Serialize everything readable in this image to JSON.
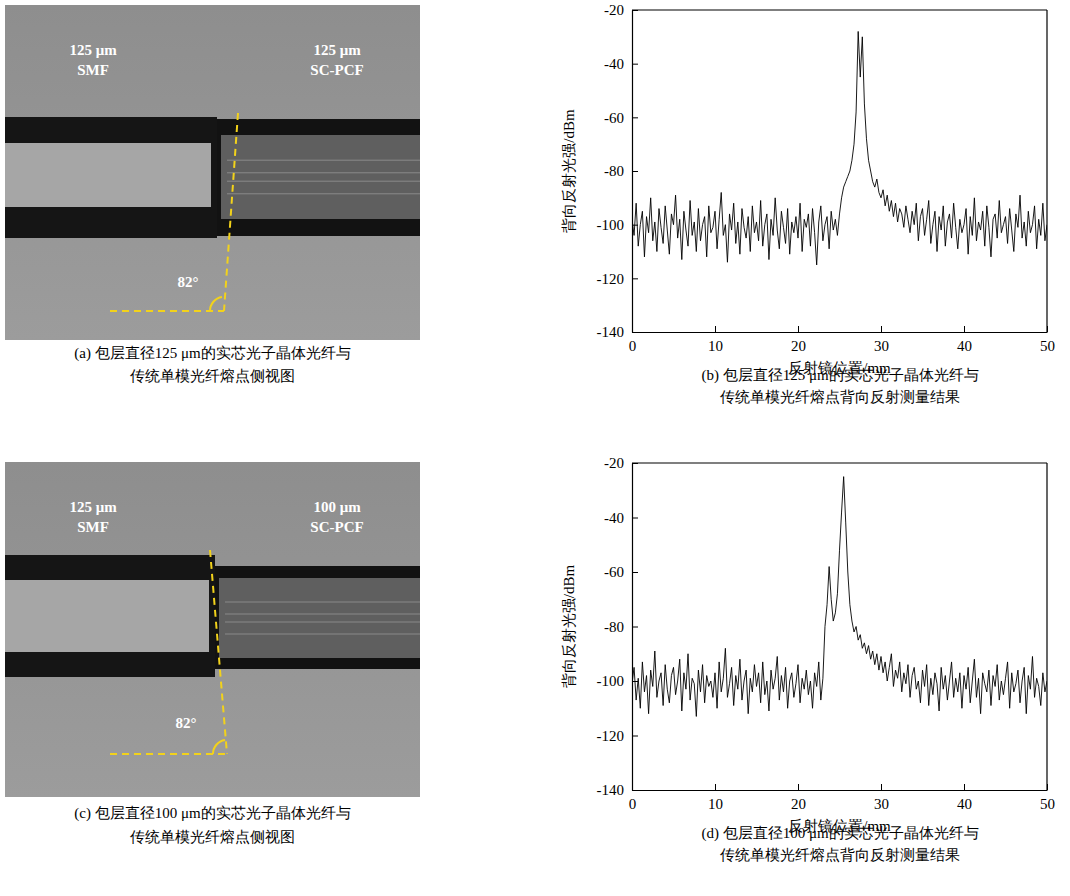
{
  "chart_data": [
    {
      "type": "line",
      "xlabel": "反射镜位置/mm",
      "ylabel": "背向反射光强/dBm",
      "caption": [
        "(b) 包层直径125 μm的实芯光子晶体光纤与",
        "传统单模光纤熔点背向反射测量结果"
      ],
      "xlim": [
        0,
        50
      ],
      "ylim": [
        -140,
        -20
      ],
      "xticks": [
        0,
        10,
        20,
        30,
        40,
        50
      ],
      "yticks": [
        -140,
        -120,
        -100,
        -80,
        -60,
        -40,
        -20
      ],
      "x": [
        0,
        0.25,
        0.5,
        0.75,
        1,
        1.25,
        1.5,
        1.75,
        2,
        2.25,
        2.5,
        2.75,
        3,
        3.25,
        3.5,
        3.75,
        4,
        4.25,
        4.5,
        4.75,
        5,
        5.25,
        5.5,
        5.75,
        6,
        6.25,
        6.5,
        6.75,
        7,
        7.25,
        7.5,
        7.75,
        8,
        8.25,
        8.5,
        8.75,
        9,
        9.25,
        9.5,
        9.75,
        10,
        10.25,
        10.5,
        10.75,
        11,
        11.25,
        11.5,
        11.75,
        12,
        12.25,
        12.5,
        12.75,
        13,
        13.25,
        13.5,
        13.75,
        14,
        14.25,
        14.5,
        14.75,
        15,
        15.25,
        15.5,
        15.75,
        16,
        16.25,
        16.5,
        16.75,
        17,
        17.25,
        17.5,
        17.75,
        18,
        18.25,
        18.5,
        18.75,
        19,
        19.25,
        19.5,
        19.75,
        20,
        20.25,
        20.5,
        20.75,
        21,
        21.25,
        21.5,
        21.75,
        22,
        22.25,
        22.5,
        22.75,
        23,
        23.25,
        23.5,
        23.75,
        24,
        24.25,
        24.5,
        24.75,
        25,
        25.25,
        25.5,
        25.75,
        26,
        26.25,
        26.5,
        26.75,
        27,
        27.25,
        27.5,
        27.75,
        28,
        28.25,
        28.5,
        28.75,
        29,
        29.25,
        29.5,
        29.75,
        30,
        30.25,
        30.5,
        30.75,
        31,
        31.25,
        31.5,
        31.75,
        32,
        32.25,
        32.5,
        32.75,
        33,
        33.25,
        33.5,
        33.75,
        34,
        34.25,
        34.5,
        34.75,
        35,
        35.25,
        35.5,
        35.75,
        36,
        36.25,
        36.5,
        36.75,
        37,
        37.25,
        37.5,
        37.75,
        38,
        38.25,
        38.5,
        38.75,
        39,
        39.25,
        39.5,
        39.75,
        40,
        40.25,
        40.5,
        40.75,
        41,
        41.25,
        41.5,
        41.75,
        42,
        42.25,
        42.5,
        42.75,
        43,
        43.25,
        43.5,
        43.75,
        44,
        44.25,
        44.5,
        44.75,
        45,
        45.25,
        45.5,
        45.75,
        46,
        46.25,
        46.5,
        46.75,
        47,
        47.25,
        47.5,
        47.75,
        48,
        48.25,
        48.5,
        48.75,
        49,
        49.25,
        49.5,
        49.75,
        50
      ],
      "series": [
        {
          "color": "#000000",
          "values": [
            -98,
            -104,
            -92,
            -108,
            -100,
            -95,
            -112,
            -97,
            -103,
            -90,
            -106,
            -99,
            -110,
            -94,
            -101,
            -107,
            -93,
            -102,
            -111,
            -96,
            -100,
            -89,
            -105,
            -98,
            -113,
            -95,
            -102,
            -108,
            -91,
            -104,
            -99,
            -110,
            -94,
            -106,
            -100,
            -97,
            -112,
            -93,
            -103,
            -101,
            -95,
            -109,
            -98,
            -88,
            -104,
            -100,
            -114,
            -96,
            -102,
            -92,
            -107,
            -99,
            -111,
            -94,
            -101,
            -105,
            -97,
            -110,
            -93,
            -103,
            -99,
            -106,
            -91,
            -108,
            -100,
            -96,
            -113,
            -98,
            -104,
            -90,
            -102,
            -109,
            -95,
            -101,
            -107,
            -94,
            -111,
            -99,
            -103,
            -97,
            -105,
            -92,
            -110,
            -98,
            -101,
            -96,
            -108,
            -94,
            -103,
            -115,
            -99,
            -93,
            -106,
            -100,
            -97,
            -109,
            -95,
            -102,
            -98,
            -104,
            -96,
            -90,
            -86,
            -84,
            -82,
            -80,
            -76,
            -70,
            -58,
            -28,
            -45,
            -30,
            -55,
            -68,
            -76,
            -80,
            -84,
            -86,
            -83,
            -88,
            -90,
            -87,
            -93,
            -89,
            -95,
            -91,
            -97,
            -92,
            -99,
            -94,
            -96,
            -101,
            -93,
            -98,
            -103,
            -95,
            -100,
            -92,
            -106,
            -97,
            -94,
            -104,
            -98,
            -91,
            -107,
            -100,
            -95,
            -110,
            -97,
            -102,
            -93,
            -108,
            -99,
            -96,
            -105,
            -92,
            -101,
            -109,
            -98,
            -103,
            -100,
            -94,
            -111,
            -97,
            -104,
            -90,
            -106,
            -99,
            -102,
            -95,
            -108,
            -93,
            -101,
            -112,
            -98,
            -96,
            -105,
            -91,
            -103,
            -100,
            -97,
            -107,
            -94,
            -102,
            -110,
            -96,
            -101,
            -89,
            -105,
            -99,
            -108,
            -95,
            -103,
            -100,
            -93,
            -109,
            -98,
            -104,
            -92,
            -106,
            -100
          ]
        }
      ]
    },
    {
      "type": "line",
      "xlabel": "反射镜位置/mm",
      "ylabel": "背向反射光强/dBm",
      "caption": [
        "(d) 包层直径100 μm的实芯光子晶体光纤与",
        "传统单模光纤熔点背向反射测量结果"
      ],
      "xlim": [
        0,
        50
      ],
      "ylim": [
        -140,
        -20
      ],
      "xticks": [
        0,
        10,
        20,
        30,
        40,
        50
      ],
      "yticks": [
        -140,
        -120,
        -100,
        -80,
        -60,
        -40,
        -20
      ],
      "x": [
        0,
        0.25,
        0.5,
        0.75,
        1,
        1.25,
        1.5,
        1.75,
        2,
        2.25,
        2.5,
        2.75,
        3,
        3.25,
        3.5,
        3.75,
        4,
        4.25,
        4.5,
        4.75,
        5,
        5.25,
        5.5,
        5.75,
        6,
        6.25,
        6.5,
        6.75,
        7,
        7.25,
        7.5,
        7.75,
        8,
        8.25,
        8.5,
        8.75,
        9,
        9.25,
        9.5,
        9.75,
        10,
        10.25,
        10.5,
        10.75,
        11,
        11.25,
        11.5,
        11.75,
        12,
        12.25,
        12.5,
        12.75,
        13,
        13.25,
        13.5,
        13.75,
        14,
        14.25,
        14.5,
        14.75,
        15,
        15.25,
        15.5,
        15.75,
        16,
        16.25,
        16.5,
        16.75,
        17,
        17.25,
        17.5,
        17.75,
        18,
        18.25,
        18.5,
        18.75,
        19,
        19.25,
        19.5,
        19.75,
        20,
        20.25,
        20.5,
        20.75,
        21,
        21.25,
        21.5,
        21.75,
        22,
        22.25,
        22.5,
        22.75,
        23,
        23.25,
        23.5,
        23.75,
        24,
        24.25,
        24.5,
        24.75,
        25,
        25.25,
        25.5,
        25.75,
        26,
        26.25,
        26.5,
        26.75,
        27,
        27.25,
        27.5,
        27.75,
        28,
        28.25,
        28.5,
        28.75,
        29,
        29.25,
        29.5,
        29.75,
        30,
        30.25,
        30.5,
        30.75,
        31,
        31.25,
        31.5,
        31.75,
        32,
        32.25,
        32.5,
        32.75,
        33,
        33.25,
        33.5,
        33.75,
        34,
        34.25,
        34.5,
        34.75,
        35,
        35.25,
        35.5,
        35.75,
        36,
        36.25,
        36.5,
        36.75,
        37,
        37.25,
        37.5,
        37.75,
        38,
        38.25,
        38.5,
        38.75,
        39,
        39.25,
        39.5,
        39.75,
        40,
        40.25,
        40.5,
        40.75,
        41,
        41.25,
        41.5,
        41.75,
        42,
        42.25,
        42.5,
        42.75,
        43,
        43.25,
        43.5,
        43.75,
        44,
        44.25,
        44.5,
        44.75,
        45,
        45.25,
        45.5,
        45.75,
        46,
        46.25,
        46.5,
        46.75,
        47,
        47.25,
        47.5,
        47.75,
        48,
        48.25,
        48.5,
        48.75,
        49,
        49.25,
        49.5,
        49.75,
        50
      ],
      "series": [
        {
          "color": "#000000",
          "values": [
            -101,
            -95,
            -107,
            -99,
            -110,
            -93,
            -104,
            -98,
            -112,
            -96,
            -102,
            -89,
            -106,
            -100,
            -97,
            -109,
            -94,
            -103,
            -108,
            -98,
            -95,
            -105,
            -100,
            -92,
            -111,
            -97,
            -103,
            -90,
            -107,
            -99,
            -101,
            -113,
            -96,
            -104,
            -94,
            -108,
            -98,
            -102,
            -100,
            -106,
            -97,
            -110,
            -93,
            -104,
            -99,
            -88,
            -106,
            -101,
            -95,
            -109,
            -98,
            -103,
            -92,
            -107,
            -100,
            -96,
            -112,
            -99,
            -104,
            -94,
            -102,
            -97,
            -108,
            -93,
            -105,
            -100,
            -111,
            -96,
            -103,
            -99,
            -91,
            -107,
            -98,
            -104,
            -95,
            -110,
            -100,
            -97,
            -106,
            -101,
            -94,
            -108,
            -99,
            -103,
            -96,
            -105,
            -100,
            -110,
            -97,
            -102,
            -93,
            -107,
            -99,
            -80,
            -72,
            -58,
            -70,
            -78,
            -75,
            -68,
            -52,
            -38,
            -25,
            -42,
            -60,
            -72,
            -78,
            -82,
            -80,
            -85,
            -83,
            -88,
            -86,
            -90,
            -87,
            -92,
            -89,
            -94,
            -90,
            -96,
            -91,
            -97,
            -93,
            -100,
            -95,
            -90,
            -102,
            -96,
            -99,
            -93,
            -104,
            -97,
            -101,
            -94,
            -106,
            -98,
            -95,
            -103,
            -100,
            -108,
            -96,
            -102,
            -94,
            -109,
            -99,
            -105,
            -97,
            -101,
            -111,
            -95,
            -103,
            -98,
            -107,
            -100,
            -93,
            -106,
            -99,
            -104,
            -97,
            -110,
            -98,
            -103,
            -95,
            -108,
            -100,
            -92,
            -106,
            -99,
            -112,
            -97,
            -101,
            -104,
            -96,
            -109,
            -98,
            -102,
            -94,
            -107,
            -100,
            -105,
            -99,
            -93,
            -110,
            -97,
            -104,
            -101,
            -96,
            -108,
            -100,
            -95,
            -112,
            -98,
            -103,
            -91,
            -106,
            -99,
            -102,
            -109,
            -97,
            -104,
            -100
          ]
        }
      ]
    }
  ],
  "images": [
    {
      "left_label": [
        "125 μm",
        "SMF"
      ],
      "right_label": [
        "125 μm",
        "SC-PCF"
      ],
      "angle": "82°",
      "caption": [
        "(a) 包层直径125 μm的实芯光子晶体光纤与",
        "传统单模光纤熔点侧视图"
      ]
    },
    {
      "left_label": [
        "125 μm",
        "SMF"
      ],
      "right_label": [
        "100 μm",
        "SC-PCF"
      ],
      "angle": "82°",
      "caption": [
        "(c) 包层直径100 μm的实芯光子晶体光纤与",
        "传统单模光纤熔点侧视图"
      ]
    }
  ]
}
